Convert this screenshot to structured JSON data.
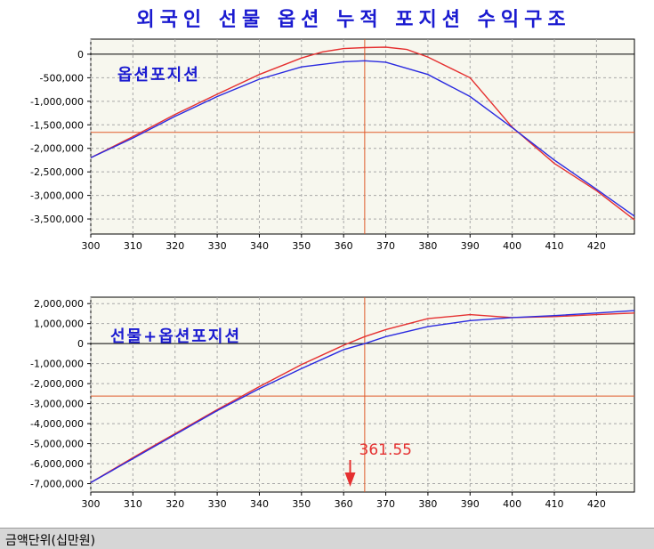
{
  "title": "외국인 선물 옵션 누적 포지션 수익구조",
  "status_bar": "금액단위(십만원)",
  "colors": {
    "current": "#e53030",
    "expiry": "#2a2ae0",
    "crosshair": "#e05a2a",
    "zero_line": "#000000",
    "plot_bg": "#f7f7ee",
    "grid": "#a8a8a8"
  },
  "chart_data": [
    {
      "type": "line",
      "label": "옵션포지션",
      "x_ticks": [
        300,
        310,
        320,
        330,
        340,
        350,
        360,
        370,
        380,
        390,
        400,
        410,
        420
      ],
      "y_ticks": [
        0,
        -500000,
        -1000000,
        -1500000,
        -2000000,
        -2500000,
        -3000000,
        -3500000
      ],
      "y_tick_labels": [
        "0",
        "-500,000",
        "-1,000,000",
        "-1,500,000",
        "-2,000,000",
        "-2,500,000",
        "-3,000,000",
        "-3,500,000"
      ],
      "xlim": [
        300,
        429
      ],
      "ylim": [
        -3820000,
        320000
      ],
      "crosshair": {
        "x": 365,
        "y": -1660000
      },
      "series": [
        {
          "color": "#e53030",
          "points": [
            [
              300,
              -2200000
            ],
            [
              310,
              -1750000
            ],
            [
              320,
              -1280000
            ],
            [
              330,
              -850000
            ],
            [
              340,
              -430000
            ],
            [
              350,
              -80000
            ],
            [
              355,
              50000
            ],
            [
              360,
              120000
            ],
            [
              365,
              140000
            ],
            [
              370,
              150000
            ],
            [
              375,
              100000
            ],
            [
              380,
              -60000
            ],
            [
              390,
              -500000
            ],
            [
              400,
              -1550000
            ],
            [
              410,
              -2320000
            ],
            [
              420,
              -2900000
            ],
            [
              429,
              -3520000
            ]
          ]
        },
        {
          "color": "#2a2ae0",
          "points": [
            [
              300,
              -2200000
            ],
            [
              310,
              -1780000
            ],
            [
              320,
              -1320000
            ],
            [
              330,
              -900000
            ],
            [
              340,
              -530000
            ],
            [
              350,
              -270000
            ],
            [
              360,
              -160000
            ],
            [
              365,
              -140000
            ],
            [
              370,
              -170000
            ],
            [
              380,
              -430000
            ],
            [
              390,
              -900000
            ],
            [
              400,
              -1560000
            ],
            [
              410,
              -2250000
            ],
            [
              420,
              -2870000
            ],
            [
              429,
              -3440000
            ]
          ]
        }
      ]
    },
    {
      "type": "line",
      "label": "선물+옵션포지션",
      "x_ticks": [
        300,
        310,
        320,
        330,
        340,
        350,
        360,
        370,
        380,
        390,
        400,
        410,
        420
      ],
      "y_ticks": [
        2000000,
        1000000,
        0,
        -1000000,
        -2000000,
        -3000000,
        -4000000,
        -5000000,
        -6000000,
        -7000000
      ],
      "y_tick_labels": [
        "2,000,000",
        "1,000,000",
        "0",
        "-1,000,000",
        "-2,000,000",
        "-3,000,000",
        "-4,000,000",
        "-5,000,000",
        "-6,000,000",
        "-7,000,000"
      ],
      "xlim": [
        300,
        429
      ],
      "ylim": [
        -7420000,
        2320000
      ],
      "crosshair": {
        "x": 365,
        "y": -2620000
      },
      "marker": {
        "x": 361.55,
        "label": "361.55"
      },
      "series": [
        {
          "color": "#e53030",
          "points": [
            [
              300,
              -6950000
            ],
            [
              310,
              -5700000
            ],
            [
              320,
              -4500000
            ],
            [
              330,
              -3300000
            ],
            [
              340,
              -2150000
            ],
            [
              350,
              -1050000
            ],
            [
              360,
              -80000
            ],
            [
              365,
              350000
            ],
            [
              370,
              700000
            ],
            [
              380,
              1250000
            ],
            [
              390,
              1450000
            ],
            [
              400,
              1300000
            ],
            [
              410,
              1350000
            ],
            [
              420,
              1450000
            ],
            [
              429,
              1530000
            ]
          ]
        },
        {
          "color": "#2a2ae0",
          "points": [
            [
              300,
              -6950000
            ],
            [
              310,
              -5750000
            ],
            [
              320,
              -4550000
            ],
            [
              330,
              -3350000
            ],
            [
              340,
              -2250000
            ],
            [
              350,
              -1250000
            ],
            [
              360,
              -300000
            ],
            [
              365,
              0
            ],
            [
              370,
              350000
            ],
            [
              380,
              850000
            ],
            [
              390,
              1150000
            ],
            [
              400,
              1300000
            ],
            [
              410,
              1400000
            ],
            [
              420,
              1530000
            ],
            [
              429,
              1650000
            ]
          ]
        }
      ]
    }
  ]
}
